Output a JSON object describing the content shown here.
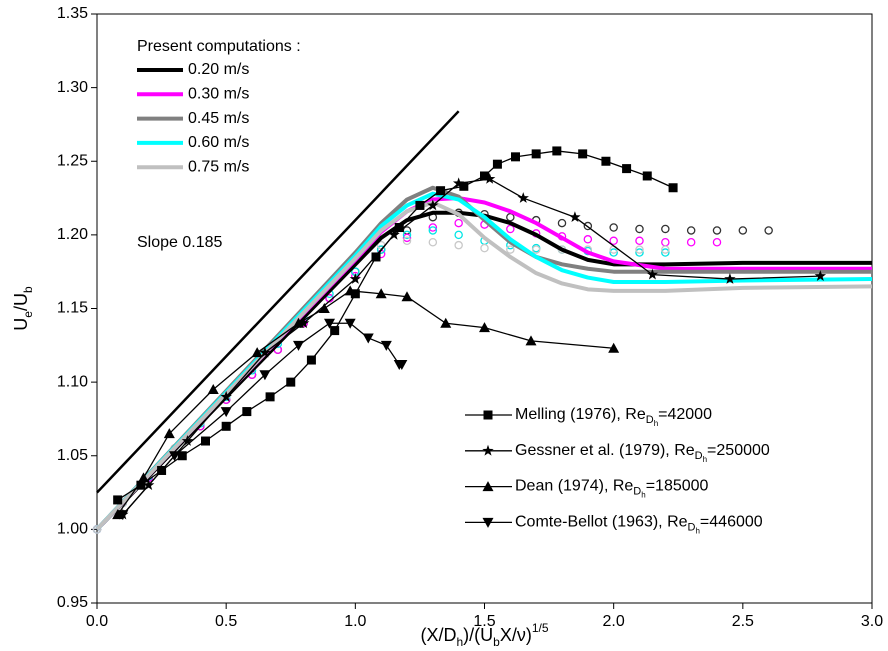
{
  "chart_data": {
    "type": "line",
    "xlabel_parts": [
      "(X/D",
      "h",
      ")/(U",
      "b",
      "X/ν)",
      "1/5"
    ],
    "ylabel_parts": [
      "U",
      "e",
      "/U",
      "b"
    ],
    "xlim": [
      0,
      3
    ],
    "ylim": [
      0.95,
      1.35
    ],
    "xticks": [
      {
        "value": 0,
        "label": "0.0"
      },
      {
        "value": 0.5,
        "label": "0.5"
      },
      {
        "value": 1,
        "label": "1.0"
      },
      {
        "value": 1.5,
        "label": "1.5"
      },
      {
        "value": 2,
        "label": "2.0"
      },
      {
        "value": 2.5,
        "label": "2.5"
      },
      {
        "value": 3,
        "label": "3.0"
      }
    ],
    "yticks": [
      {
        "value": 0.95,
        "label": "0.95"
      },
      {
        "value": 1,
        "label": "1.00"
      },
      {
        "value": 1.05,
        "label": "1.05"
      },
      {
        "value": 1.1,
        "label": "1.10"
      },
      {
        "value": 1.15,
        "label": "1.15"
      },
      {
        "value": 1.2,
        "label": "1.20"
      },
      {
        "value": 1.25,
        "label": "1.25"
      },
      {
        "value": 1.3,
        "label": "1.30"
      },
      {
        "value": 1.35,
        "label": "1.35"
      }
    ],
    "legend_title": "Present computations :",
    "annotation": "Slope 0.185",
    "reference_line": {
      "color": "#000000",
      "x": [
        0,
        1.4
      ],
      "values": [
        1.025,
        1.284
      ]
    },
    "series": [
      {
        "name": "0.20 m/s",
        "style": "line",
        "color": "#000000",
        "x": [
          0,
          0.5,
          1.0,
          1.1,
          1.2,
          1.3,
          1.4,
          1.5,
          1.6,
          1.7,
          1.8,
          1.9,
          2.0,
          2.2,
          2.5,
          3.0
        ],
        "values": [
          1.0,
          1.09,
          1.18,
          1.198,
          1.21,
          1.215,
          1.215,
          1.213,
          1.208,
          1.2,
          1.19,
          1.183,
          1.18,
          1.18,
          1.181,
          1.181
        ]
      },
      {
        "name": "0.30 m/s",
        "style": "line",
        "color": "#ff00ff",
        "x": [
          0,
          0.5,
          1.0,
          1.1,
          1.2,
          1.3,
          1.4,
          1.5,
          1.6,
          1.7,
          1.8,
          1.9,
          2.0,
          2.2,
          2.5,
          3.0
        ],
        "values": [
          1.0,
          1.092,
          1.183,
          1.202,
          1.216,
          1.224,
          1.225,
          1.222,
          1.216,
          1.208,
          1.198,
          1.188,
          1.182,
          1.177,
          1.177,
          1.177
        ]
      },
      {
        "name": "0.45 m/s",
        "style": "line",
        "color": "#808080",
        "x": [
          0,
          0.5,
          1.0,
          1.1,
          1.2,
          1.3,
          1.4,
          1.5,
          1.6,
          1.7,
          1.8,
          1.9,
          2.0,
          2.2,
          2.5,
          3.0
        ],
        "values": [
          1.0,
          1.094,
          1.188,
          1.208,
          1.224,
          1.232,
          1.226,
          1.21,
          1.195,
          1.185,
          1.18,
          1.177,
          1.175,
          1.175,
          1.175,
          1.175
        ]
      },
      {
        "name": "0.60 m/s",
        "style": "line",
        "color": "#00ffff",
        "x": [
          0,
          0.5,
          1.0,
          1.1,
          1.2,
          1.3,
          1.4,
          1.5,
          1.6,
          1.7,
          1.8,
          1.9,
          2.0,
          2.2,
          2.5,
          3.0
        ],
        "values": [
          1.0,
          1.093,
          1.186,
          1.206,
          1.22,
          1.228,
          1.224,
          1.212,
          1.197,
          1.185,
          1.176,
          1.171,
          1.168,
          1.168,
          1.169,
          1.17
        ]
      },
      {
        "name": "0.75 m/s",
        "style": "line",
        "color": "#c0c0c0",
        "x": [
          0,
          0.5,
          1.0,
          1.1,
          1.2,
          1.3,
          1.4,
          1.5,
          1.6,
          1.7,
          1.8,
          1.9,
          2.0,
          2.2,
          2.5,
          3.0
        ],
        "values": [
          1.0,
          1.092,
          1.184,
          1.203,
          1.216,
          1.222,
          1.214,
          1.198,
          1.185,
          1.174,
          1.167,
          1.163,
          1.162,
          1.162,
          1.164,
          1.165
        ]
      },
      {
        "style": "circles",
        "color": "#333333",
        "x": [
          0,
          0.1,
          0.2,
          0.3,
          0.4,
          0.5,
          0.6,
          0.7,
          0.8,
          0.9,
          1.0,
          1.1,
          1.2,
          1.3,
          1.4,
          1.5,
          1.6,
          1.7,
          1.8,
          1.9,
          2.0,
          2.1,
          2.2,
          2.3,
          2.4,
          2.5,
          2.6
        ],
        "values": [
          1.0,
          1.018,
          1.035,
          1.053,
          1.07,
          1.088,
          1.105,
          1.122,
          1.14,
          1.157,
          1.175,
          1.19,
          1.203,
          1.212,
          1.215,
          1.214,
          1.212,
          1.21,
          1.208,
          1.206,
          1.205,
          1.204,
          1.204,
          1.203,
          1.203,
          1.203,
          1.203
        ]
      },
      {
        "style": "circles",
        "color": "#ff00ff",
        "x": [
          0,
          0.1,
          0.2,
          0.3,
          0.4,
          0.5,
          0.6,
          0.7,
          0.8,
          0.9,
          1.0,
          1.1,
          1.2,
          1.3,
          1.4,
          1.5,
          1.6,
          1.7,
          1.8,
          1.9,
          2.0,
          2.1,
          2.2,
          2.3,
          2.4
        ],
        "values": [
          1.0,
          1.018,
          1.035,
          1.053,
          1.07,
          1.088,
          1.105,
          1.122,
          1.14,
          1.157,
          1.172,
          1.187,
          1.198,
          1.205,
          1.208,
          1.207,
          1.204,
          1.201,
          1.199,
          1.197,
          1.196,
          1.196,
          1.195,
          1.195,
          1.195
        ]
      },
      {
        "style": "circles",
        "color": "#00e5e5",
        "x": [
          0,
          0.1,
          0.2,
          0.3,
          0.4,
          0.5,
          0.6,
          0.7,
          0.8,
          0.9,
          1.0,
          1.1,
          1.2,
          1.3,
          1.4,
          1.5,
          1.6,
          1.7,
          1.8,
          1.9,
          2.0,
          2.1,
          2.2
        ],
        "values": [
          1.0,
          1.018,
          1.036,
          1.054,
          1.072,
          1.09,
          1.108,
          1.126,
          1.143,
          1.16,
          1.175,
          1.19,
          1.2,
          1.203,
          1.2,
          1.196,
          1.193,
          1.191,
          1.19,
          1.189,
          1.188,
          1.188,
          1.188
        ]
      },
      {
        "style": "circles",
        "color": "#c8c8c8",
        "x": [
          0,
          0.1,
          0.2,
          0.3,
          0.4,
          0.5,
          0.6,
          0.7,
          0.8,
          0.9,
          1.0,
          1.1,
          1.2,
          1.3,
          1.4,
          1.5,
          1.6,
          1.7,
          1.8,
          1.9,
          2.0,
          2.1,
          2.2
        ],
        "values": [
          1.0,
          1.018,
          1.037,
          1.055,
          1.073,
          1.091,
          1.11,
          1.128,
          1.146,
          1.165,
          1.182,
          1.193,
          1.196,
          1.195,
          1.193,
          1.191,
          1.19,
          1.19,
          1.19,
          1.19,
          1.19,
          1.19,
          1.19
        ]
      },
      {
        "name": "Melling (1976), Re",
        "name_sub": "D",
        "name_subsub": "h",
        "name_suffix": "=42000",
        "style": "markers-line",
        "marker": "square",
        "color": "#000000",
        "x": [
          0.08,
          0.17,
          0.25,
          0.33,
          0.42,
          0.5,
          0.58,
          0.67,
          0.75,
          0.83,
          0.92,
          1.0,
          1.08,
          1.17,
          1.25,
          1.33,
          1.42,
          1.5,
          1.55,
          1.62,
          1.7,
          1.78,
          1.88,
          1.97,
          2.05,
          2.13,
          2.23
        ],
        "values": [
          1.02,
          1.03,
          1.04,
          1.05,
          1.06,
          1.07,
          1.08,
          1.09,
          1.1,
          1.115,
          1.135,
          1.16,
          1.185,
          1.205,
          1.22,
          1.23,
          1.233,
          1.24,
          1.248,
          1.253,
          1.255,
          1.257,
          1.255,
          1.25,
          1.245,
          1.24,
          1.232
        ]
      },
      {
        "name": "Gessner et al. (1979), Re",
        "name_sub": "D",
        "name_subsub": "h",
        "name_suffix": "=250000",
        "style": "markers-line",
        "marker": "star",
        "color": "#000000",
        "x": [
          0.1,
          0.2,
          0.35,
          0.5,
          0.65,
          0.8,
          1.0,
          1.15,
          1.3,
          1.4,
          1.52,
          1.65,
          1.85,
          2.15,
          2.45,
          2.8
        ],
        "values": [
          1.01,
          1.03,
          1.06,
          1.09,
          1.12,
          1.14,
          1.17,
          1.2,
          1.22,
          1.235,
          1.238,
          1.225,
          1.212,
          1.173,
          1.17,
          1.172
        ]
      },
      {
        "name": "Dean (1974), Re",
        "name_sub": "D",
        "name_subsub": "h",
        "name_suffix": "=185000",
        "style": "markers-line",
        "marker": "triangle-up",
        "color": "#000000",
        "x": [
          0.08,
          0.18,
          0.28,
          0.45,
          0.62,
          0.78,
          0.88,
          0.98,
          1.1,
          1.2,
          1.35,
          1.5,
          1.68,
          2.0
        ],
        "values": [
          1.01,
          1.035,
          1.065,
          1.095,
          1.12,
          1.14,
          1.15,
          1.162,
          1.16,
          1.158,
          1.14,
          1.137,
          1.128,
          1.123
        ]
      },
      {
        "name": "Comte-Bellot (1963), Re",
        "name_sub": "D",
        "name_subsub": "h",
        "name_suffix": "=446000",
        "style": "markers-line",
        "marker": "triangle-down",
        "color": "#000000",
        "x": [
          0.1,
          0.3,
          0.5,
          0.65,
          0.78,
          0.9,
          0.98,
          1.05,
          1.12,
          1.17,
          1.18
        ],
        "values": [
          1.01,
          1.05,
          1.08,
          1.105,
          1.125,
          1.14,
          1.14,
          1.13,
          1.125,
          1.112,
          1.112
        ]
      }
    ]
  }
}
